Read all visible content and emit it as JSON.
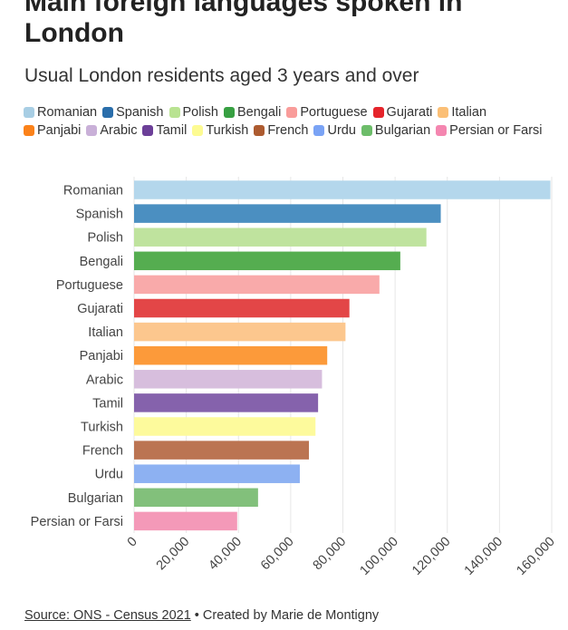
{
  "header": {
    "title": "Main foreign languages spoken in London",
    "subtitle": "Usual London residents aged 3 years and over"
  },
  "footer": {
    "source_link": "Source: ONS - Census 2021",
    "separator": " • ",
    "credit": "Created by Marie de Montigny"
  },
  "chart_data": {
    "type": "bar",
    "orientation": "horizontal",
    "title": "Main foreign languages spoken in London",
    "subtitle": "Usual London residents aged 3 years and over",
    "categories": [
      "Romanian",
      "Spanish",
      "Polish",
      "Bengali",
      "Portuguese",
      "Gujarati",
      "Italian",
      "Panjabi",
      "Arabic",
      "Tamil",
      "Turkish",
      "French",
      "Urdu",
      "Bulgarian",
      "Persian or Farsi"
    ],
    "values": [
      159500,
      117500,
      112000,
      102000,
      94000,
      82500,
      81000,
      74000,
      72000,
      70500,
      69500,
      67000,
      63500,
      47500,
      39500
    ],
    "colors": [
      "#b4d7ec",
      "#4b8fc1",
      "#bfe39e",
      "#55ad50",
      "#f9aaaa",
      "#e34647",
      "#fcc78e",
      "#fc9a3a",
      "#d7bedd",
      "#8562ac",
      "#fdfa9c",
      "#bb7452",
      "#8db1f2",
      "#82c07b",
      "#f499b8"
    ],
    "xlim": [
      0,
      160000
    ],
    "xticks": [
      "0",
      "20,000",
      "40,000",
      "60,000",
      "80,000",
      "100,000",
      "120,000",
      "140,000",
      "160,000"
    ],
    "xtick_values": [
      0,
      20000,
      40000,
      60000,
      80000,
      100000,
      120000,
      140000,
      160000
    ],
    "grid": true,
    "legend_position": "top-left",
    "legend": [
      "Romanian",
      "Spanish",
      "Polish",
      "Bengali",
      "Portuguese",
      "Gujarati",
      "Italian",
      "Panjabi",
      "Arabic",
      "Tamil",
      "Turkish",
      "French",
      "Urdu",
      "Bulgarian",
      "Persian or Farsi"
    ],
    "legend_colors": [
      "#a8cee4",
      "#2a6eab",
      "#b9e391",
      "#37a042",
      "#f99c9a",
      "#e5242b",
      "#fbbf76",
      "#fb821a",
      "#c9b0d8",
      "#6c3f98",
      "#fdfb92",
      "#ad5b30",
      "#7aa3f5",
      "#6dbd6a",
      "#f486b0"
    ]
  }
}
